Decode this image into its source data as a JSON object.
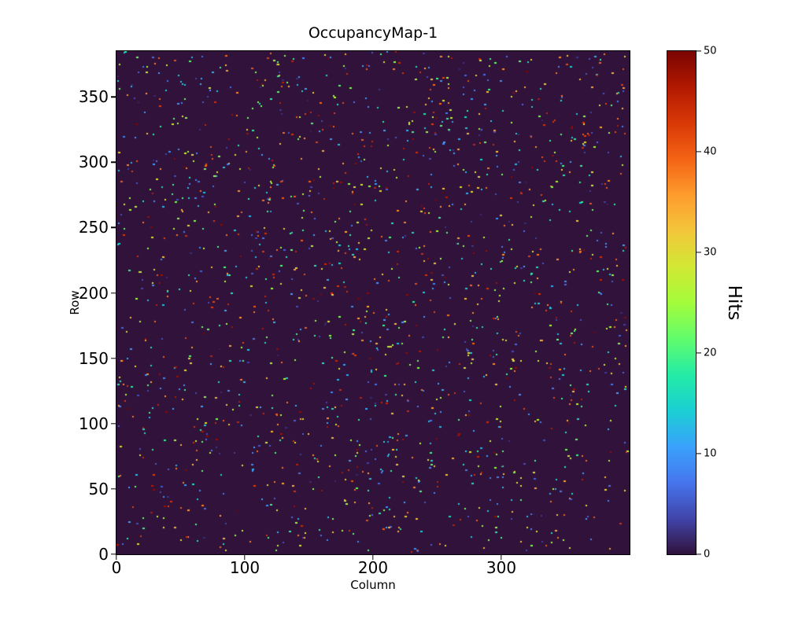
{
  "figure": {
    "background_color": "#ffffff",
    "text_color": "#000000"
  },
  "chart_data": {
    "type": "heatmap",
    "title": "OccupancyMap-1",
    "xlabel": "Column",
    "ylabel": "Row",
    "colorbar_label": "Hits",
    "xlim": [
      0,
      400
    ],
    "ylim": [
      0,
      385
    ],
    "xticks": [
      0,
      100,
      200,
      300
    ],
    "yticks": [
      0,
      50,
      100,
      150,
      200,
      250,
      300,
      350
    ],
    "colorbar_ticks": [
      0,
      10,
      20,
      30,
      40,
      50
    ],
    "vmin": 0,
    "vmax": 50,
    "colormap": {
      "name": "turbo",
      "stops": [
        "#30123b",
        "#4145ab",
        "#4675ed",
        "#39a2fc",
        "#1bcfd4",
        "#24eca6",
        "#61fc6c",
        "#a4fc3b",
        "#d1e834",
        "#f3c63a",
        "#fe9b2d",
        "#f36315",
        "#d93806",
        "#b11901",
        "#7a0402"
      ]
    },
    "background_value": 0,
    "background_color": "#30123b",
    "sparse_hits": {
      "description": "sparse random single-pixel hits over a mostly-zero occupancy matrix",
      "count": 1800,
      "value_min": 1,
      "value_max": 50,
      "distribution": "uniform-random",
      "seed": 1337
    }
  }
}
